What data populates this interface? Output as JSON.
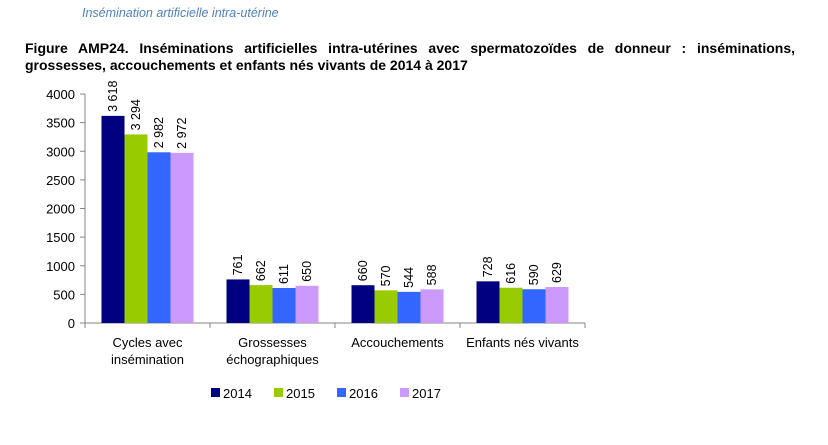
{
  "header": {
    "section": "Insémination artificielle intra-utérine"
  },
  "figure": {
    "title": "Figure AMP24. Inséminations artificielles intra-utérines avec spermatozoïdes de donneur : inséminations, grossesses, accouchements et enfants nés vivants de 2014 à 2017"
  },
  "chart_data": {
    "type": "bar",
    "categories": [
      [
        "Cycles avec",
        "insémination"
      ],
      [
        "Grossesses",
        "échographiques"
      ],
      [
        "Accouchements"
      ],
      [
        "Enfants nés vivants"
      ]
    ],
    "series": [
      {
        "name": "2014",
        "color": "#000080",
        "values": [
          3618,
          761,
          660,
          728
        ],
        "labels": [
          "3 618",
          "761",
          "660",
          "728"
        ]
      },
      {
        "name": "2015",
        "color": "#99cc00",
        "values": [
          3294,
          662,
          570,
          616
        ],
        "labels": [
          "3 294",
          "662",
          "570",
          "616"
        ]
      },
      {
        "name": "2016",
        "color": "#3366ff",
        "values": [
          2982,
          611,
          544,
          590
        ],
        "labels": [
          "2 982",
          "611",
          "544",
          "590"
        ]
      },
      {
        "name": "2017",
        "color": "#cc99ff",
        "values": [
          2972,
          650,
          588,
          629
        ],
        "labels": [
          "2 972",
          "650",
          "588",
          "629"
        ]
      }
    ],
    "ylim": [
      0,
      4000
    ],
    "yticks": [
      0,
      500,
      1000,
      1500,
      2000,
      2500,
      3000,
      3500,
      4000
    ],
    "grid": false,
    "legend_position": "bottom"
  }
}
